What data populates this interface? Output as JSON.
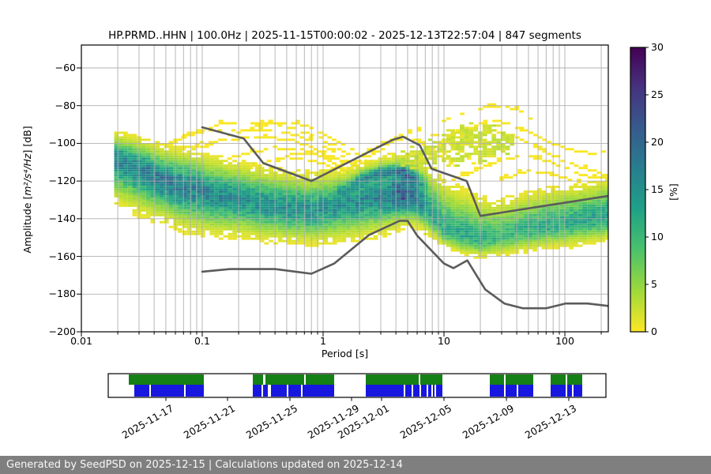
{
  "title": "HP.PRMD..HHN | 100.0Hz | 2025-11-15T00:00:02 - 2025-12-13T22:57:04 | 847 segments",
  "axes": {
    "xlabel": "Period [s]",
    "ylabel_prefix": "Amplitude [",
    "ylabel_math": "m²/s⁴/Hz",
    "ylabel_suffix": "] [dB]",
    "xscale": "log",
    "xlim": [
      0.01,
      229
    ],
    "ylim": [
      -200,
      -48
    ],
    "xticks": [
      {
        "p": 0.01,
        "label": "0.01"
      },
      {
        "p": 0.1,
        "label": "0.1"
      },
      {
        "p": 1,
        "label": "1"
      },
      {
        "p": 10,
        "label": "10"
      },
      {
        "p": 100,
        "label": "100"
      }
    ],
    "yticks": [
      {
        "v": -60,
        "label": "−60"
      },
      {
        "v": -80,
        "label": "−80"
      },
      {
        "v": -100,
        "label": "−100"
      },
      {
        "v": -120,
        "label": "−120"
      },
      {
        "v": -140,
        "label": "−140"
      },
      {
        "v": -160,
        "label": "−160"
      },
      {
        "v": -180,
        "label": "−180"
      },
      {
        "v": -200,
        "label": "−200"
      }
    ]
  },
  "colorbar": {
    "label": "[%]",
    "vmin": 0,
    "vmax": 30,
    "cmap": "viridis_r",
    "ticks": [
      {
        "v": 0,
        "label": "0"
      },
      {
        "v": 5,
        "label": "5"
      },
      {
        "v": 10,
        "label": "10"
      },
      {
        "v": 15,
        "label": "15"
      },
      {
        "v": 20,
        "label": "20"
      },
      {
        "v": 25,
        "label": "25"
      },
      {
        "v": 30,
        "label": "30"
      }
    ],
    "viridis_stops": [
      [
        0.0,
        68,
        1,
        84
      ],
      [
        0.14,
        70,
        50,
        126
      ],
      [
        0.29,
        54,
        92,
        141
      ],
      [
        0.43,
        39,
        127,
        142
      ],
      [
        0.57,
        31,
        161,
        135
      ],
      [
        0.71,
        74,
        193,
        109
      ],
      [
        0.86,
        160,
        218,
        57
      ],
      [
        1.0,
        253,
        231,
        37
      ]
    ]
  },
  "chart_data": {
    "type": "heatmap",
    "title": "HP.PRMD..HHN | 100.0Hz | 2025-11-15T00:00:02 - 2025-12-13T22:57:04 | 847 segments",
    "xlabel": "Period [s]",
    "ylabel": "Amplitude [m²/s⁴/Hz] [dB]",
    "zlabel": "[%]",
    "zlim": [
      0,
      30
    ],
    "histogram": {
      "periods": [
        0.02,
        0.03,
        0.05,
        0.08,
        0.12,
        0.2,
        0.35,
        0.55,
        0.8,
        1.1,
        1.6,
        2.3,
        3.3,
        4.7,
        6,
        7.5,
        10,
        14,
        20,
        30,
        45,
        70,
        110,
        170,
        229
      ],
      "mode_db": [
        -109,
        -114,
        -121,
        -124.5,
        -127.5,
        -130.5,
        -133.5,
        -135.5,
        -136.5,
        -135,
        -132.5,
        -130,
        -128.5,
        -128,
        -131,
        -137,
        -146.5,
        -149.5,
        -151.5,
        -150,
        -147,
        -144.5,
        -143,
        -141,
        -140
      ],
      "upper_db": [
        -96,
        -99,
        -104,
        -106,
        -109,
        -112,
        -115,
        -117,
        -118,
        -117,
        -115,
        -112,
        -110,
        -108,
        -110,
        -114,
        -121,
        -126,
        -130,
        -131,
        -128,
        -126,
        -124,
        -122,
        -120
      ],
      "lower_db": [
        -131,
        -136,
        -141,
        -146,
        -148,
        -149,
        -151,
        -152,
        -153,
        -152,
        -151,
        -149,
        -147,
        -143,
        -144,
        -149,
        -155,
        -159,
        -161,
        -160,
        -158,
        -156,
        -155,
        -153,
        -152
      ],
      "peak_percent": [
        16,
        17,
        18,
        17,
        16,
        15,
        15,
        15,
        15,
        15,
        15,
        16,
        17,
        22,
        18,
        13,
        12,
        12,
        11,
        10,
        11,
        12,
        12,
        13,
        13
      ]
    },
    "secondary_ridge": {
      "periods": [
        1.5,
        2.2,
        3.2,
        4.5,
        6,
        6.8
      ],
      "db": [
        -125,
        -118.5,
        -115.5,
        -115.5,
        -119,
        -122
      ],
      "percent": [
        4,
        10,
        12,
        12,
        8,
        3
      ],
      "sigma_db": 2.2
    },
    "storm_patch": {
      "periods": [
        4.5,
        6,
        8,
        12,
        20,
        30,
        38
      ],
      "top_db": [
        -106,
        -102,
        -99,
        -93,
        -90,
        -92,
        -97
      ],
      "bot_db": [
        -113,
        -113,
        -113,
        -112,
        -110,
        -107,
        -104
      ],
      "percent_range": [
        1.2,
        3.4
      ]
    },
    "outlier_traces": [
      [
        [
          0.055,
          -101
        ],
        [
          0.08,
          -96
        ],
        [
          0.12,
          -91
        ],
        [
          0.2,
          -89.5
        ],
        [
          0.35,
          -90
        ],
        [
          0.6,
          -93
        ],
        [
          1,
          -99
        ],
        [
          1.6,
          -106
        ],
        [
          2.3,
          -113
        ],
        [
          3,
          -118
        ]
      ],
      [
        [
          0.1,
          -103
        ],
        [
          0.18,
          -96
        ],
        [
          0.3,
          -91
        ],
        [
          0.5,
          -89.5
        ],
        [
          0.8,
          -92
        ],
        [
          1.2,
          -98
        ],
        [
          1.9,
          -106
        ],
        [
          2.6,
          -113
        ]
      ],
      [
        [
          0.3,
          -112
        ],
        [
          0.6,
          -106
        ],
        [
          1,
          -106
        ],
        [
          1.8,
          -112
        ],
        [
          3,
          -104
        ],
        [
          4.5,
          -96
        ],
        [
          6.5,
          -94
        ],
        [
          9,
          -97
        ],
        [
          13,
          -104
        ],
        [
          18,
          -112
        ]
      ],
      [
        [
          1.5,
          -116
        ],
        [
          3,
          -120
        ],
        [
          5,
          -112
        ],
        [
          8,
          -104
        ],
        [
          13,
          -95
        ],
        [
          20,
          -90
        ],
        [
          28,
          -89
        ],
        [
          40,
          -92
        ],
        [
          60,
          -97
        ],
        [
          90,
          -102
        ],
        [
          130,
          -105
        ],
        [
          180,
          -106
        ],
        [
          229,
          -104
        ]
      ],
      [
        [
          6,
          -112
        ],
        [
          10,
          -106
        ],
        [
          16,
          -99
        ],
        [
          25,
          -94
        ],
        [
          38,
          -97
        ],
        [
          60,
          -103
        ],
        [
          90,
          -109
        ],
        [
          140,
          -114
        ],
        [
          200,
          -116
        ]
      ],
      [
        [
          12,
          -120
        ],
        [
          20,
          -114
        ],
        [
          32,
          -109
        ],
        [
          50,
          -107
        ],
        [
          80,
          -111
        ],
        [
          120,
          -116
        ],
        [
          170,
          -119
        ],
        [
          229,
          -117
        ]
      ],
      [
        [
          0.07,
          -104
        ],
        [
          0.15,
          -99
        ],
        [
          0.3,
          -97
        ],
        [
          0.55,
          -99
        ],
        [
          0.9,
          -104
        ],
        [
          1.4,
          -111
        ],
        [
          2,
          -118
        ]
      ],
      [
        [
          0.1,
          -113
        ],
        [
          0.2,
          -107
        ],
        [
          0.4,
          -103
        ],
        [
          0.7,
          -104
        ],
        [
          1.1,
          -109
        ],
        [
          1.6,
          -115
        ]
      ],
      [
        [
          2.2,
          -106
        ],
        [
          3.5,
          -99
        ],
        [
          5,
          -98
        ],
        [
          7,
          -101
        ],
        [
          10,
          -108
        ],
        [
          14,
          -115
        ]
      ],
      [
        [
          30,
          -120
        ],
        [
          50,
          -115
        ],
        [
          80,
          -117
        ],
        [
          120,
          -121
        ],
        [
          170,
          -124
        ],
        [
          229,
          -122
        ]
      ],
      [
        [
          0.07,
          -97
        ],
        [
          0.12,
          -94
        ],
        [
          0.25,
          -93.5
        ],
        [
          0.5,
          -95
        ],
        [
          0.8,
          -99
        ],
        [
          1.3,
          -106
        ],
        [
          1.9,
          -113
        ]
      ],
      [
        [
          0.15,
          -117
        ],
        [
          0.3,
          -112
        ],
        [
          0.6,
          -109
        ],
        [
          1,
          -111
        ],
        [
          1.5,
          -116
        ]
      ],
      [
        [
          10,
          -89
        ],
        [
          14,
          -85
        ],
        [
          20,
          -82
        ],
        [
          30,
          -81
        ],
        [
          40,
          -83
        ],
        [
          55,
          -88
        ]
      ]
    ],
    "gray_model_lines": {
      "upper": [
        [
          0.1,
          -91.5
        ],
        [
          0.22,
          -97.4
        ],
        [
          0.32,
          -110.5
        ],
        [
          0.8,
          -120
        ],
        [
          3.8,
          -98
        ],
        [
          4.6,
          -96.5
        ],
        [
          6.3,
          -101
        ],
        [
          7.9,
          -113.5
        ],
        [
          15.4,
          -120
        ],
        [
          20,
          -138.5
        ],
        [
          229,
          -127.9
        ]
      ],
      "lower": [
        [
          0.1,
          -168.1
        ],
        [
          0.17,
          -166.7
        ],
        [
          0.4,
          -166.7
        ],
        [
          0.8,
          -169.2
        ],
        [
          1.24,
          -163.7
        ],
        [
          2.4,
          -148.6
        ],
        [
          4.3,
          -141.1
        ],
        [
          5,
          -141.1
        ],
        [
          6,
          -149
        ],
        [
          10,
          -163.8
        ],
        [
          12,
          -166.2
        ],
        [
          15.6,
          -162.1
        ],
        [
          21.9,
          -177.5
        ],
        [
          31.6,
          -185
        ],
        [
          45,
          -187.5
        ],
        [
          70,
          -187.5
        ],
        [
          101,
          -185
        ],
        [
          154,
          -185
        ],
        [
          229,
          -186.3
        ]
      ]
    },
    "colors": {
      "grid": "#b0b0b0",
      "model_line": "#5b5b5b",
      "trace_yellow": "#f9e721",
      "spine": "#000000"
    }
  },
  "timeline": {
    "green_color": "#158015",
    "blue_color": "#1717e0",
    "ticks": [
      {
        "f": 0.1159,
        "label": "2025-11-17"
      },
      {
        "f": 0.2397,
        "label": "2025-11-21"
      },
      {
        "f": 0.3651,
        "label": "2025-11-25"
      },
      {
        "f": 0.4889,
        "label": "2025-11-29"
      },
      {
        "f": 0.5492,
        "label": "2025-12-01"
      },
      {
        "f": 0.6746,
        "label": "2025-12-05"
      },
      {
        "f": 0.8,
        "label": "2025-12-09"
      },
      {
        "f": 0.9254,
        "label": "2025-12-13"
      }
    ],
    "green_segments": [
      [
        0.0413,
        0.1921
      ],
      [
        0.2905,
        0.3111
      ],
      [
        0.3159,
        0.3937
      ],
      [
        0.3968,
        0.454
      ],
      [
        0.5175,
        0.6238
      ],
      [
        0.627,
        0.6714
      ],
      [
        0.7667,
        0.7952
      ],
      [
        0.7984,
        0.854
      ],
      [
        0.8889,
        0.919
      ],
      [
        0.9222,
        0.9524
      ]
    ],
    "blue_segments": [
      [
        0.0524,
        0.0825
      ],
      [
        0.0857,
        0.1524
      ],
      [
        0.1556,
        0.1921
      ],
      [
        0.2905,
        0.3079
      ],
      [
        0.3111,
        0.3206
      ],
      [
        0.327,
        0.3587
      ],
      [
        0.3619,
        0.3873
      ],
      [
        0.3905,
        0.454
      ],
      [
        0.5175,
        0.5937
      ],
      [
        0.5968,
        0.6095
      ],
      [
        0.6127,
        0.6254
      ],
      [
        0.6286,
        0.6397
      ],
      [
        0.6429,
        0.6492
      ],
      [
        0.6524,
        0.6556
      ],
      [
        0.6587,
        0.6714
      ],
      [
        0.7667,
        0.7952
      ],
      [
        0.7984,
        0.8206
      ],
      [
        0.8238,
        0.854
      ],
      [
        0.8889,
        0.919
      ],
      [
        0.9222,
        0.9317
      ],
      [
        0.9349,
        0.9524
      ]
    ]
  },
  "footer": {
    "text": "Generated by SeedPSD on 2025-12-15 | Calculations updated on 2025-12-14",
    "bg": "#7f7f7f"
  }
}
